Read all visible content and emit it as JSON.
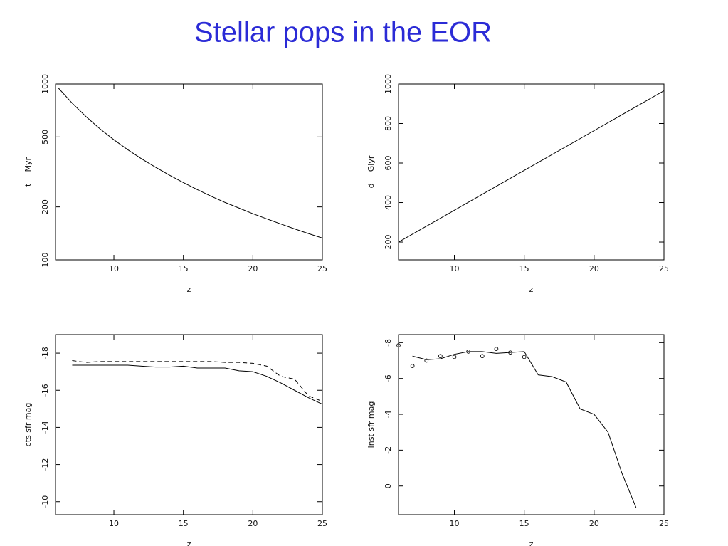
{
  "title": "Stellar pops in the EOR",
  "chart_data": [
    {
      "type": "line",
      "xlabel": "z",
      "ylabel": "t − Myr",
      "yscale": "log",
      "xlim": [
        5.8,
        25
      ],
      "ylim": [
        100,
        1000
      ],
      "xticks": [
        10,
        15,
        20,
        25
      ],
      "yticks": [
        100,
        200,
        500,
        1000
      ],
      "series": [
        {
          "color": "#000000",
          "style": "solid",
          "x": [
            6,
            7,
            8,
            9,
            10,
            11,
            12,
            13,
            14,
            15,
            16,
            17,
            18,
            19,
            20,
            21,
            22,
            23,
            24,
            25
          ],
          "values": [
            950,
            778,
            652,
            556,
            482,
            423,
            375,
            336,
            303,
            275,
            251,
            230,
            212,
            197,
            183,
            171,
            160,
            150,
            141,
            133
          ]
        }
      ]
    },
    {
      "type": "line",
      "xlabel": "z",
      "ylabel": "d − Glyr",
      "yscale": "linear",
      "xlim": [
        6,
        25
      ],
      "ylim": [
        110,
        1000
      ],
      "xticks": [
        10,
        15,
        20,
        25
      ],
      "yticks": [
        200,
        400,
        600,
        800,
        1000
      ],
      "series": [
        {
          "color": "#000000",
          "style": "solid",
          "x": [
            6,
            10,
            15,
            20,
            25
          ],
          "values": [
            200,
            361,
            563,
            764,
            966
          ]
        }
      ]
    },
    {
      "type": "line",
      "xlabel": "z",
      "ylabel": "cts sfr mag",
      "yscale": "linear",
      "xlim": [
        5.8,
        25
      ],
      "ylim": [
        -9.3,
        -19
      ],
      "xticks": [
        10,
        15,
        20,
        25
      ],
      "yticks": [
        -18,
        -16,
        -14,
        -12,
        -10
      ],
      "series": [
        {
          "color": "#000000",
          "style": "solid",
          "x": [
            7,
            8,
            9,
            10,
            11,
            12,
            13,
            14,
            15,
            16,
            17,
            18,
            19,
            20,
            21,
            22,
            23,
            24,
            25
          ],
          "values": [
            -17.35,
            -17.35,
            -17.35,
            -17.35,
            -17.35,
            -17.3,
            -17.25,
            -17.25,
            -17.3,
            -17.2,
            -17.2,
            -17.2,
            -17.05,
            -17.0,
            -16.75,
            -16.4,
            -16.0,
            -15.6,
            -15.25
          ]
        },
        {
          "color": "#000000",
          "style": "dashed",
          "x": [
            7,
            8,
            9,
            10,
            11,
            12,
            13,
            14,
            15,
            16,
            17,
            18,
            19,
            20,
            21,
            22,
            23,
            24,
            25
          ],
          "values": [
            -17.6,
            -17.5,
            -17.55,
            -17.55,
            -17.55,
            -17.55,
            -17.55,
            -17.55,
            -17.55,
            -17.55,
            -17.55,
            -17.5,
            -17.5,
            -17.45,
            -17.3,
            -16.75,
            -16.6,
            -15.7,
            -15.4
          ]
        }
      ]
    },
    {
      "type": "line",
      "xlabel": "z",
      "ylabel": "inst sfr mag",
      "yscale": "linear",
      "xlim": [
        6,
        25
      ],
      "ylim": [
        1.6,
        -8.45
      ],
      "xticks": [
        10,
        15,
        20,
        25
      ],
      "yticks": [
        0,
        -2,
        -4,
        -6,
        -8
      ],
      "series": [
        {
          "color": "#000000",
          "style": "solid",
          "x": [
            7,
            8,
            9,
            10,
            11,
            12,
            13,
            14,
            15,
            16,
            17,
            18,
            19,
            20,
            21,
            22,
            23
          ],
          "values": [
            -7.25,
            -7.05,
            -7.1,
            -7.35,
            -7.5,
            -7.5,
            -7.4,
            -7.45,
            -7.5,
            -6.2,
            -6.1,
            -5.8,
            -4.3,
            -4.0,
            -3.0,
            -0.7,
            1.2
          ]
        },
        {
          "color": "#000000",
          "style": "markers",
          "x": [
            6,
            7,
            8,
            9,
            10,
            11,
            12,
            13,
            14,
            15
          ],
          "values": [
            -7.85,
            -6.7,
            -7.0,
            -7.25,
            -7.2,
            -7.5,
            -7.25,
            -7.65,
            -7.45,
            -7.2
          ]
        }
      ]
    }
  ]
}
